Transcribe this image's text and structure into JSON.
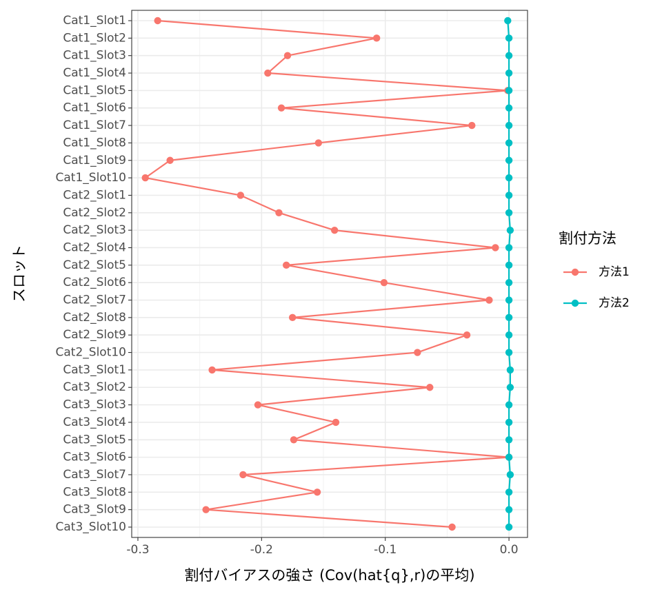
{
  "chart_data": {
    "type": "line",
    "orientation": "horizontal",
    "title": "",
    "xlabel": "割付バイアスの強さ (Cov(hat{q},r)の平均)",
    "ylabel": "スロット",
    "xlim": [
      -0.305,
      0.015
    ],
    "x_ticks": [
      -0.3,
      -0.2,
      -0.1,
      0.0
    ],
    "x_tick_labels": [
      "-0.3",
      "-0.2",
      "-0.1",
      "0.0"
    ],
    "grid": true,
    "legend": {
      "title": "割付方法",
      "placement": "right"
    },
    "categories": [
      "Cat1_Slot1",
      "Cat1_Slot2",
      "Cat1_Slot3",
      "Cat1_Slot4",
      "Cat1_Slot5",
      "Cat1_Slot6",
      "Cat1_Slot7",
      "Cat1_Slot8",
      "Cat1_Slot9",
      "Cat1_Slot10",
      "Cat2_Slot1",
      "Cat2_Slot2",
      "Cat2_Slot3",
      "Cat2_Slot4",
      "Cat2_Slot5",
      "Cat2_Slot6",
      "Cat2_Slot7",
      "Cat2_Slot8",
      "Cat2_Slot9",
      "Cat2_Slot10",
      "Cat3_Slot1",
      "Cat3_Slot2",
      "Cat3_Slot3",
      "Cat3_Slot4",
      "Cat3_Slot5",
      "Cat3_Slot6",
      "Cat3_Slot7",
      "Cat3_Slot8",
      "Cat3_Slot9",
      "Cat3_Slot10"
    ],
    "series": [
      {
        "name": "方法1",
        "color": "#F8766D",
        "values": [
          -0.284,
          -0.107,
          -0.179,
          -0.195,
          -0.001,
          -0.184,
          -0.03,
          -0.154,
          -0.274,
          -0.294,
          -0.217,
          -0.186,
          -0.141,
          -0.011,
          -0.18,
          -0.101,
          -0.016,
          -0.175,
          -0.034,
          -0.074,
          -0.24,
          -0.064,
          -0.203,
          -0.14,
          -0.174,
          0.0,
          -0.215,
          -0.155,
          -0.245,
          -0.046
        ]
      },
      {
        "name": "方法2",
        "color": "#00BFC4",
        "values": [
          -0.001,
          0.0,
          0.0,
          0.0,
          0.0,
          0.0,
          0.0,
          0.0,
          0.0,
          0.0,
          0.0,
          0.0,
          0.001,
          0.0,
          0.0,
          0.0,
          0.0,
          0.0,
          0.0,
          0.0,
          0.001,
          0.001,
          0.0,
          0.0,
          0.0,
          0.0,
          0.001,
          0.0,
          0.0,
          0.0
        ]
      }
    ]
  }
}
